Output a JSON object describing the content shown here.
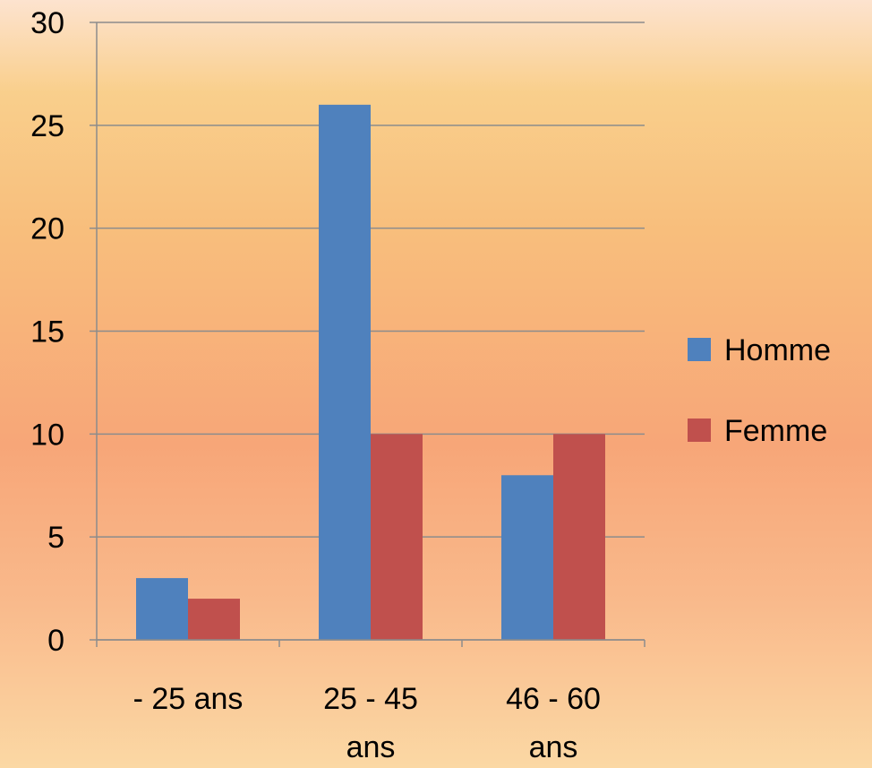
{
  "chart_data": {
    "type": "bar",
    "title": "",
    "xlabel": "",
    "ylabel": "",
    "categories": [
      [
        "- 25 ans"
      ],
      [
        "25 - 45",
        "ans"
      ],
      [
        "46 - 60",
        "ans"
      ]
    ],
    "series": [
      {
        "name": "Homme",
        "values": [
          3,
          26,
          8
        ],
        "color": "#4f81bd"
      },
      {
        "name": "Femme",
        "values": [
          2,
          10,
          10
        ],
        "color": "#c0504d"
      }
    ],
    "ylim": [
      0,
      30
    ],
    "yticks": [
      0,
      5,
      10,
      15,
      20,
      25,
      30
    ],
    "grid": true,
    "legend_position": "right"
  }
}
